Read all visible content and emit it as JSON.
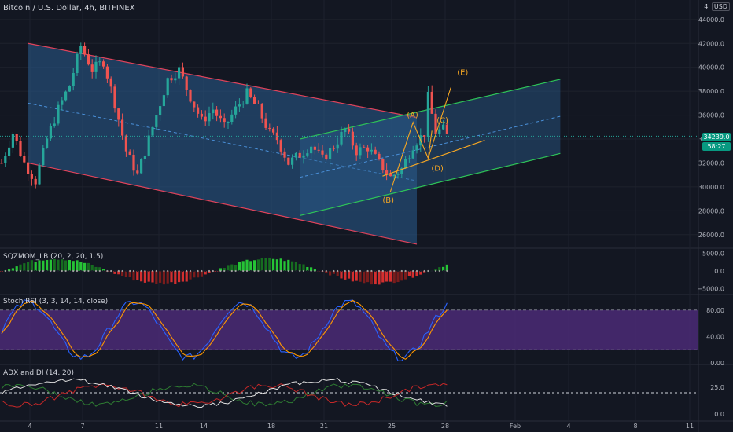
{
  "header": {
    "symbol_title": "Bitcoin / U.S. Dollar, 4h, BITFINEX",
    "alert_count": "4",
    "currency": "USD"
  },
  "price_badges": {
    "last_price": "34239.0",
    "countdown": "58:27"
  },
  "indicators": {
    "sqzmom_label": "SQZMOM_LB (20, 2, 20, 1.5)",
    "stoch_label": "Stoch RSI (3, 3, 14, 14, close)",
    "adx_label": "ADX and DI (14, 20)"
  },
  "wave_labels": [
    "(A)",
    "(B)",
    "(C)",
    "(D)",
    "(E)"
  ],
  "colors": {
    "up": "#26a69a",
    "down": "#ef5350",
    "channel_fill": "#2a5d8f",
    "channel_red": "#e0435b",
    "channel_green": "#2ec458",
    "wave": "#f5a623",
    "stoch_band": "#4b2a75",
    "stoch_k": "#2962ff",
    "stoch_d": "#ff9800"
  },
  "chart_data": [
    {
      "type": "candlestick",
      "title": "Bitcoin / U.S. Dollar, 4h, BITFINEX",
      "x_ticks": [
        "4",
        "7",
        "11",
        "14",
        "18",
        "21",
        "25",
        "28",
        "Feb",
        "4",
        "8",
        "11"
      ],
      "y_ticks": [
        26000,
        28000,
        30000,
        32000,
        34000,
        36000,
        38000,
        40000,
        42000,
        44000
      ],
      "ylim": [
        25000,
        45500
      ],
      "last_price": 34239.0,
      "price_path": [
        [
          0,
          32000
        ],
        [
          3,
          34500
        ],
        [
          6,
          32000
        ],
        [
          9,
          30500
        ],
        [
          12,
          34000
        ],
        [
          15,
          36500
        ],
        [
          18,
          38500
        ],
        [
          21,
          41800
        ],
        [
          24,
          39800
        ],
        [
          27,
          40500
        ],
        [
          30,
          37000
        ],
        [
          33,
          33000
        ],
        [
          36,
          31000
        ],
        [
          40,
          35000
        ],
        [
          44,
          39000
        ],
        [
          47,
          39800
        ],
        [
          50,
          37500
        ],
        [
          53,
          35500
        ],
        [
          56,
          36500
        ],
        [
          59,
          35000
        ],
        [
          62,
          36500
        ],
        [
          65,
          37800
        ],
        [
          68,
          36500
        ],
        [
          71,
          34500
        ],
        [
          73,
          34000
        ],
        [
          76,
          32000
        ],
        [
          79,
          32700
        ],
        [
          82,
          33500
        ],
        [
          85,
          32300
        ],
        [
          88,
          33400
        ],
        [
          91,
          34800
        ],
        [
          94,
          33000
        ],
        [
          97,
          33300
        ],
        [
          100,
          32000
        ],
        [
          103,
          30800
        ],
        [
          106,
          31500
        ],
        [
          109,
          33500
        ],
        [
          112,
          34500
        ],
        [
          113,
          37500
        ],
        [
          115,
          34600
        ],
        [
          117,
          34800
        ],
        [
          118,
          34239
        ]
      ],
      "channels": [
        {
          "name": "descending",
          "start": [
            7,
            42000
          ],
          "end": [
            110,
            35800
          ],
          "lower_start": [
            7,
            32000
          ],
          "lower_end": [
            110,
            25200
          ],
          "color": "red"
        },
        {
          "name": "ascending",
          "start": [
            79,
            34000
          ],
          "end": [
            148,
            39000
          ],
          "lower_start": [
            79,
            27600
          ],
          "lower_end": [
            148,
            32800
          ],
          "color": "green"
        }
      ],
      "wave_points": {
        "A": [
          109,
          35400
        ],
        "B": [
          103,
          29600
        ],
        "C": [
          114,
          34700
        ],
        "D": [
          113,
          32400
        ],
        "E": [
          119,
          38300
        ]
      }
    },
    {
      "type": "bar",
      "title": "SQZMOM_LB (20, 2, 20, 1.5)",
      "y_ticks": [
        5000.0,
        0.0,
        -5000.0
      ],
      "ylim": [
        -6000,
        6000
      ]
    },
    {
      "type": "line",
      "title": "Stoch RSI (3, 3, 14, 14, close)",
      "y_ticks": [
        80.0,
        40.0,
        0.0
      ],
      "band": [
        20,
        80
      ],
      "ylim": [
        0,
        100
      ]
    },
    {
      "type": "line",
      "title": "ADX and DI (14, 20)",
      "y_ticks": [
        25.0,
        0.0
      ],
      "threshold": 20,
      "ylim": [
        -5,
        45
      ]
    }
  ]
}
